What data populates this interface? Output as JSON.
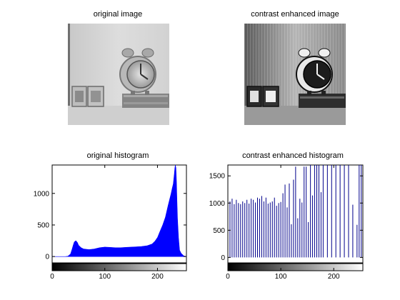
{
  "figure": {
    "panels": [
      {
        "title": "original image"
      },
      {
        "title": "contrast enhanced image"
      },
      {
        "title": "original histogram"
      },
      {
        "title": "contrast enhanced histogram"
      }
    ]
  },
  "colors": {
    "hist_fill": "#0000ff",
    "bar_stroke": "#00008b",
    "axis": "#000000"
  },
  "chart_data": [
    {
      "type": "area",
      "title": "original histogram",
      "xlabel": "",
      "ylabel": "",
      "xlim": [
        0,
        255
      ],
      "ylim": [
        -100,
        1450
      ],
      "xticks": [
        0,
        100,
        200
      ],
      "yticks": [
        0,
        500,
        1000
      ],
      "colorbar": "grayscale 0-255",
      "series": [
        {
          "x": [
            0,
            25,
            30,
            35,
            38,
            40,
            42,
            45,
            48,
            50,
            55,
            60,
            70,
            80,
            90,
            100,
            110,
            120,
            130,
            140,
            150,
            160,
            170,
            180,
            190,
            195,
            200,
            205,
            210,
            215,
            220,
            223,
            226,
            228,
            230,
            232,
            233,
            234,
            235,
            236,
            237,
            238,
            240,
            242,
            245,
            250,
            255
          ],
          "values": [
            0,
            0,
            5,
            40,
            120,
            180,
            230,
            250,
            220,
            180,
            140,
            120,
            110,
            120,
            140,
            150,
            145,
            140,
            140,
            145,
            150,
            155,
            160,
            170,
            200,
            240,
            300,
            400,
            500,
            620,
            800,
            900,
            1000,
            1080,
            1150,
            1300,
            1400,
            1450,
            1400,
            1200,
            900,
            600,
            300,
            100,
            50,
            10,
            0
          ]
        }
      ]
    },
    {
      "type": "bar",
      "title": "contrast enhanced histogram",
      "xlabel": "",
      "ylabel": "",
      "xlim": [
        0,
        255
      ],
      "ylim": [
        -100,
        1700
      ],
      "xticks": [
        0,
        100,
        200
      ],
      "yticks": [
        0,
        500,
        1000,
        1500
      ],
      "colorbar": "grayscale 0-255",
      "series": [
        {
          "x": [
            4,
            8,
            12,
            16,
            20,
            24,
            28,
            32,
            36,
            40,
            44,
            48,
            52,
            56,
            60,
            64,
            68,
            72,
            76,
            80,
            84,
            88,
            92,
            96,
            100,
            104,
            108,
            112,
            116,
            120,
            124,
            128,
            132,
            136,
            140,
            144,
            148,
            152,
            156,
            160,
            164,
            168,
            172,
            176,
            180,
            188,
            196,
            204,
            212,
            220,
            228,
            236,
            244,
            248,
            252
          ],
          "values": [
            1030,
            1080,
            980,
            1060,
            1000,
            980,
            1030,
            1000,
            1060,
            990,
            1080,
            1060,
            1010,
            1100,
            1080,
            1130,
            1030,
            1100,
            990,
            1010,
            1030,
            1100,
            950,
            1000,
            1020,
            1180,
            1340,
            920,
            1360,
            610,
            1430,
            1670,
            720,
            1080,
            1010,
            1670,
            1670,
            650,
            1700,
            1140,
            1700,
            1700,
            1700,
            1200,
            1700,
            1700,
            1700,
            1700,
            1700,
            1700,
            1700,
            970,
            600,
            1700,
            1700
          ]
        }
      ]
    }
  ]
}
